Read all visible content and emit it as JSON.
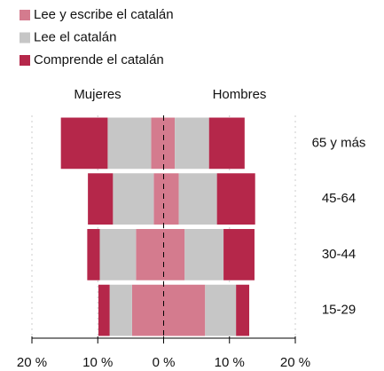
{
  "chart_data": {
    "type": "pyramid",
    "left_label": "Mujeres",
    "right_label": "Hombres",
    "categories": [
      "65 y más",
      "45-64",
      "30-44",
      "15-29"
    ],
    "series": [
      {
        "name": "Lee y escribe el catalán",
        "color": "#d47b8e",
        "mujeres": [
          -1.9,
          -1.5,
          -4.2,
          -4.8
        ],
        "hombres": [
          1.7,
          2.3,
          3.2,
          6.3
        ]
      },
      {
        "name": "Lee el catalán",
        "color": "#c6c6c6",
        "mujeres": [
          -6.6,
          -6.2,
          -5.5,
          -3.4
        ],
        "hombres": [
          5.2,
          5.8,
          5.9,
          4.7
        ]
      },
      {
        "name": "Comprende el catalán",
        "color": "#b5274a",
        "mujeres": [
          -7.1,
          -3.8,
          -1.9,
          -1.7
        ],
        "hombres": [
          5.4,
          5.8,
          4.7,
          2.0
        ]
      }
    ],
    "xlim": [
      -20,
      20
    ],
    "xticks": [
      {
        "value": -20,
        "label": "20 %"
      },
      {
        "value": -10,
        "label": "10 %"
      },
      {
        "value": 0,
        "label": "0 %"
      },
      {
        "value": 10,
        "label": "10 %"
      },
      {
        "value": 20,
        "label": "20 %"
      }
    ],
    "grid": true
  }
}
